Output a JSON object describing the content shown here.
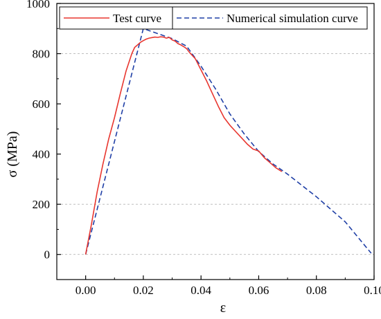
{
  "chart_data": {
    "type": "line",
    "title": "",
    "xlabel": "ε",
    "ylabel": "σ (MPa)",
    "xlim": [
      -0.01,
      0.1
    ],
    "ylim": [
      -100,
      1000
    ],
    "x_ticks": [
      "0.00",
      "0.02",
      "0.04",
      "0.06",
      "0.08",
      "0.10"
    ],
    "x_tick_values": [
      0.0,
      0.02,
      0.04,
      0.06,
      0.08,
      0.1
    ],
    "y_ticks": [
      "0",
      "200",
      "400",
      "600",
      "800",
      "1000"
    ],
    "y_tick_values": [
      0,
      200,
      400,
      600,
      800,
      1000
    ],
    "grid": "horizontal dashed at 200, 800",
    "legend_position": "top",
    "series": [
      {
        "name": "Test curve",
        "color": "#e8362f",
        "style": "solid",
        "x": [
          0.0,
          0.002,
          0.004,
          0.006,
          0.008,
          0.01,
          0.012,
          0.014,
          0.016,
          0.017,
          0.018,
          0.019,
          0.02,
          0.021,
          0.022,
          0.023,
          0.024,
          0.025,
          0.026,
          0.027,
          0.028,
          0.029,
          0.03,
          0.031,
          0.032,
          0.033,
          0.034,
          0.035,
          0.036,
          0.038,
          0.04,
          0.042,
          0.044,
          0.046,
          0.048,
          0.05,
          0.052,
          0.054,
          0.056,
          0.058,
          0.06,
          0.062,
          0.064,
          0.066,
          0.068
        ],
        "y": [
          0,
          120,
          250,
          360,
          460,
          545,
          640,
          730,
          800,
          825,
          835,
          845,
          852,
          858,
          862,
          864,
          866,
          865,
          867,
          866,
          862,
          865,
          855,
          850,
          840,
          835,
          828,
          820,
          805,
          780,
          735,
          690,
          640,
          590,
          545,
          515,
          490,
          465,
          440,
          420,
          412,
          385,
          365,
          345,
          330
        ]
      },
      {
        "name": "Numerical simulation curve",
        "color": "#1f3fa6",
        "style": "dashed",
        "x": [
          0.0,
          0.02,
          0.03,
          0.035,
          0.04,
          0.045,
          0.05,
          0.055,
          0.06,
          0.065,
          0.07,
          0.08,
          0.09,
          0.099
        ],
        "y": [
          0,
          900,
          860,
          830,
          750,
          660,
          560,
          480,
          410,
          360,
          320,
          230,
          130,
          5
        ]
      }
    ]
  }
}
